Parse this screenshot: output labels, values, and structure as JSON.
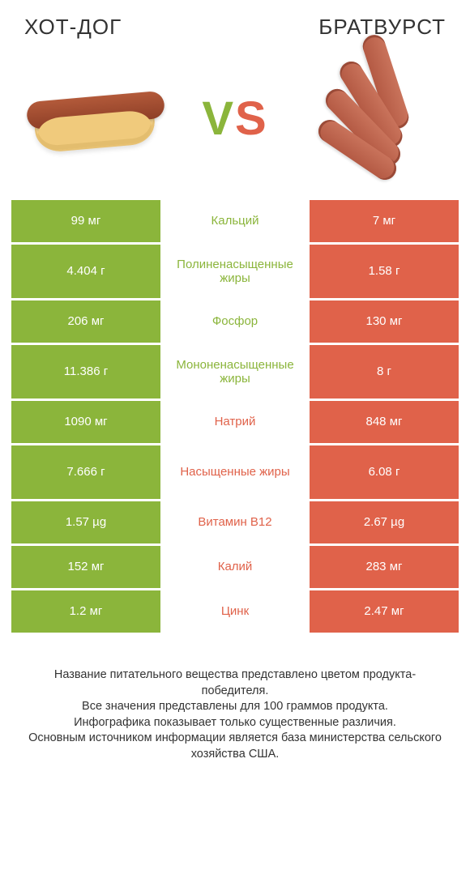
{
  "colors": {
    "left": "#8bb53b",
    "right": "#e0624a",
    "bg": "#ffffff",
    "text": "#333333"
  },
  "fonts": {
    "title_size": 26,
    "cell_size": 15,
    "footer_size": 14.5,
    "vs_size": 58
  },
  "left_title": "ХОТ-ДОГ",
  "right_title": "БРАТВУРСТ",
  "vs": {
    "v": "V",
    "s": "S"
  },
  "rows": [
    {
      "left": "99 мг",
      "label": "Кальций",
      "right": "7 мг",
      "winner": "left",
      "tall": false
    },
    {
      "left": "4.404 г",
      "label": "Полиненасыщенные жиры",
      "right": "1.58 г",
      "winner": "left",
      "tall": true
    },
    {
      "left": "206 мг",
      "label": "Фосфор",
      "right": "130 мг",
      "winner": "left",
      "tall": false
    },
    {
      "left": "11.386 г",
      "label": "Мононенасыщенные жиры",
      "right": "8 г",
      "winner": "left",
      "tall": true
    },
    {
      "left": "1090 мг",
      "label": "Натрий",
      "right": "848 мг",
      "winner": "right",
      "tall": false
    },
    {
      "left": "7.666 г",
      "label": "Насыщенные жиры",
      "right": "6.08 г",
      "winner": "right",
      "tall": true
    },
    {
      "left": "1.57 µg",
      "label": "Витамин B12",
      "right": "2.67 µg",
      "winner": "right",
      "tall": false
    },
    {
      "left": "152 мг",
      "label": "Калий",
      "right": "283 мг",
      "winner": "right",
      "tall": false
    },
    {
      "left": "1.2 мг",
      "label": "Цинк",
      "right": "2.47 мг",
      "winner": "right",
      "tall": false
    }
  ],
  "footer_lines": [
    "Название питательного вещества представлено цветом продукта-победителя.",
    "Все значения представлены для 100 граммов продукта.",
    "Инфографика показывает только существенные различия.",
    "Основным источником информации является база министерства сельского хозяйства США."
  ]
}
